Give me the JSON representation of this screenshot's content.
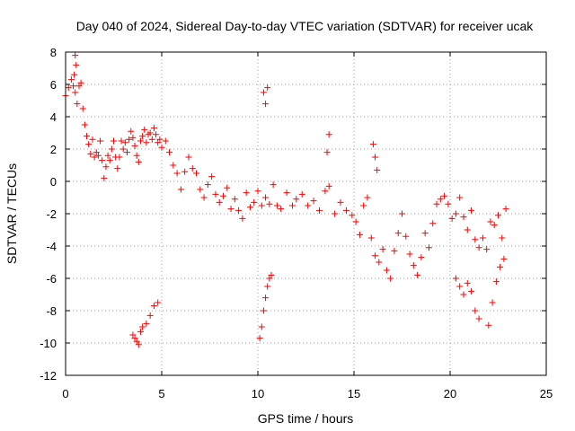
{
  "chart_data": {
    "type": "scatter",
    "title": "Day 040 of 2024, Sidereal Day-to-day VTEC variation (SDTVAR) for receiver ucak",
    "xlabel": "GPS time / hours",
    "ylabel": "SDTVAR / TECUs",
    "xlim": [
      0,
      25
    ],
    "ylim": [
      -12,
      8
    ],
    "xticks": [
      0,
      5,
      10,
      15,
      20,
      25
    ],
    "yticks": [
      -12,
      -10,
      -8,
      -6,
      -4,
      -2,
      0,
      2,
      4,
      6,
      8
    ],
    "xtick_labels": [
      "0",
      "5",
      "10",
      "15",
      "20",
      "25"
    ],
    "ytick_labels": [
      "-12",
      "-10",
      "-8",
      "-6",
      "-4",
      "-2",
      "0",
      "2",
      "4",
      "6",
      "8"
    ],
    "grid": true,
    "marker": "+",
    "color": "#ff0000",
    "series": [
      {
        "name": "SDTVAR",
        "x": [
          0.0,
          0.15,
          0.3,
          0.4,
          0.45,
          0.5,
          0.6,
          0.7,
          0.8,
          0.9,
          1.0,
          1.1,
          1.2,
          1.3,
          1.4,
          1.5,
          1.6,
          1.7,
          1.8,
          1.9,
          2.0,
          2.1,
          2.2,
          2.3,
          2.4,
          2.5,
          2.6,
          2.7,
          2.8,
          2.9,
          3.0,
          3.1,
          3.2,
          3.3,
          3.4,
          3.5,
          3.6,
          3.7,
          3.8,
          3.9,
          4.0,
          4.1,
          4.2,
          4.3,
          4.4,
          4.5,
          4.6,
          4.7,
          4.8,
          4.9,
          5.0,
          5.2,
          5.4,
          5.6,
          5.8,
          6.0,
          6.2,
          6.4,
          6.6,
          6.8,
          7.0,
          7.2,
          7.4,
          7.6,
          7.8,
          8.0,
          8.2,
          8.4,
          8.6,
          8.8,
          9.0,
          9.2,
          9.4,
          9.6,
          9.8,
          10.0,
          10.2,
          10.4,
          10.6,
          10.8,
          11.0,
          11.2,
          11.5,
          11.8,
          12.0,
          12.3,
          12.6,
          12.9,
          13.2,
          13.5,
          13.7,
          14.0,
          14.3,
          14.6,
          14.9,
          15.1,
          15.3,
          15.5,
          15.7,
          15.9,
          16.1,
          16.3,
          16.5,
          16.7,
          16.9,
          17.1,
          17.3,
          17.5,
          17.7,
          17.9,
          18.1,
          18.3,
          18.5,
          18.7,
          18.9,
          19.1,
          19.3,
          19.5,
          19.7,
          19.9,
          20.1,
          20.3,
          20.5,
          20.7,
          20.9,
          21.1,
          21.3,
          21.5,
          21.7,
          21.9,
          22.1,
          22.3,
          22.5,
          22.7,
          22.9,
          0.5,
          0.55,
          3.5,
          3.6,
          3.7,
          3.8,
          3.9,
          4.0,
          4.2,
          4.4,
          4.6,
          4.8,
          10.1,
          10.2,
          10.3,
          10.4,
          10.5,
          10.6,
          10.7,
          10.3,
          10.4,
          10.5,
          13.6,
          13.7,
          16.0,
          16.1,
          16.2,
          20.3,
          20.5,
          20.7,
          20.9,
          21.1,
          21.3,
          21.5,
          22.0,
          22.2,
          22.4,
          22.6,
          22.8
        ],
        "y": [
          5.3,
          5.8,
          6.3,
          5.9,
          6.6,
          5.5,
          4.8,
          5.9,
          6.1,
          4.5,
          3.5,
          2.8,
          2.3,
          1.7,
          2.6,
          1.5,
          1.8,
          1.6,
          2.5,
          1.3,
          0.2,
          0.9,
          1.6,
          1.3,
          2.0,
          2.5,
          1.5,
          0.8,
          1.5,
          2.5,
          2.0,
          2.4,
          1.8,
          2.6,
          3.1,
          2.7,
          2.2,
          1.6,
          1.2,
          2.5,
          2.8,
          3.2,
          2.4,
          2.9,
          3.0,
          2.6,
          3.3,
          2.9,
          2.4,
          2.6,
          2.1,
          2.5,
          1.8,
          1.0,
          0.5,
          -0.5,
          0.6,
          1.5,
          0.8,
          0.5,
          -0.5,
          -1.0,
          -0.2,
          0.3,
          -0.8,
          -1.3,
          -0.9,
          -0.4,
          -1.7,
          -1.1,
          -1.8,
          -2.3,
          -0.7,
          -1.6,
          -1.3,
          -0.6,
          -1.5,
          -1.0,
          -1.4,
          -0.2,
          -1.5,
          -1.7,
          -0.7,
          -1.5,
          -1.1,
          -0.8,
          -1.5,
          -1.2,
          -1.8,
          -0.6,
          -0.3,
          -2.0,
          -1.3,
          -1.8,
          -2.1,
          -2.5,
          -3.3,
          -1.5,
          -1.0,
          -3.5,
          -4.6,
          -5.0,
          -4.2,
          -5.5,
          -6.0,
          -4.3,
          -3.2,
          -2.0,
          -3.4,
          -4.5,
          -5.2,
          -5.8,
          -4.7,
          -3.2,
          -4.1,
          -2.6,
          -1.4,
          -1.1,
          -0.9,
          -1.4,
          -2.3,
          -2.0,
          -1.0,
          -2.2,
          -3.0,
          -1.8,
          -3.6,
          -4.1,
          -3.5,
          -4.2,
          -2.5,
          -2.7,
          -2.1,
          -3.5,
          -1.7,
          7.8,
          7.2,
          -9.5,
          -9.7,
          -9.9,
          -10.1,
          -9.3,
          -9.0,
          -8.8,
          -8.3,
          -7.7,
          -7.5,
          -9.7,
          -9.0,
          -8.0,
          -7.2,
          -6.5,
          -6.0,
          -5.8,
          5.5,
          4.8,
          5.8,
          1.8,
          2.9,
          2.3,
          1.5,
          0.7,
          -6.0,
          -6.5,
          -7.0,
          -6.3,
          -6.8,
          -8.0,
          -8.5,
          -8.9,
          -7.5,
          -6.2,
          -5.3,
          -4.8
        ]
      }
    ]
  }
}
